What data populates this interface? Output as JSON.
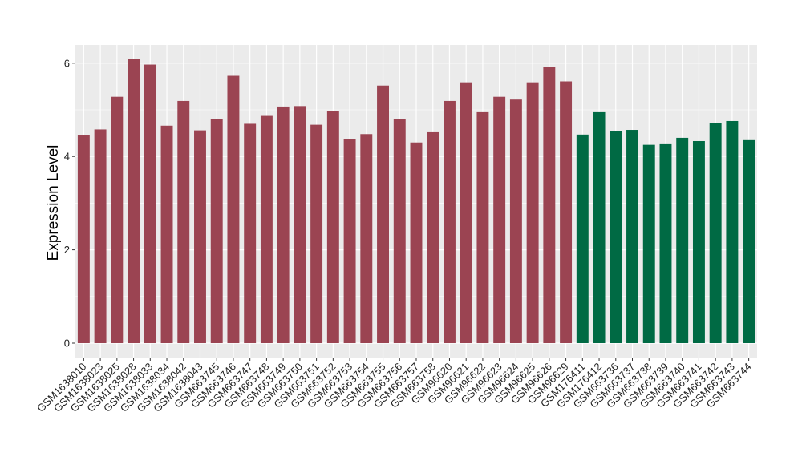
{
  "chart_data": {
    "type": "bar",
    "title": "",
    "xlabel": "",
    "ylabel": "Expression Level",
    "ylim": [
      0,
      6.3
    ],
    "yticks": [
      0,
      2,
      4,
      6
    ],
    "grid": true,
    "legend": "none",
    "colors": {
      "group1": "#9b4452",
      "group2": "#006a44",
      "panel": "#ebebeb",
      "gridline": "#ffffff"
    },
    "categories": [
      "GSM1638010",
      "GSM1638023",
      "GSM1638025",
      "GSM1638028",
      "GSM1638033",
      "GSM1638034",
      "GSM1638042",
      "GSM1638043",
      "GSM663745",
      "GSM663746",
      "GSM663747",
      "GSM663748",
      "GSM663749",
      "GSM663750",
      "GSM663751",
      "GSM663752",
      "GSM663753",
      "GSM663754",
      "GSM663755",
      "GSM663756",
      "GSM663757",
      "GSM663758",
      "GSM96620",
      "GSM96621",
      "GSM96622",
      "GSM96623",
      "GSM96624",
      "GSM96625",
      "GSM96626",
      "GSM96629",
      "GSM176411",
      "GSM176412",
      "GSM663736",
      "GSM663737",
      "GSM663738",
      "GSM663739",
      "GSM663740",
      "GSM663741",
      "GSM663742",
      "GSM663743",
      "GSM663744"
    ],
    "values": [
      4.45,
      4.58,
      5.28,
      6.09,
      5.97,
      4.66,
      5.19,
      4.56,
      4.81,
      5.73,
      4.7,
      4.87,
      5.07,
      5.08,
      4.68,
      4.98,
      4.37,
      4.48,
      5.52,
      4.81,
      4.3,
      4.52,
      5.19,
      5.59,
      4.95,
      5.28,
      5.22,
      5.59,
      5.92,
      5.61,
      4.47,
      4.95,
      4.55,
      4.57,
      4.25,
      4.28,
      4.4,
      4.33,
      4.71,
      4.76,
      4.35
    ],
    "groups": [
      1,
      1,
      1,
      1,
      1,
      1,
      1,
      1,
      1,
      1,
      1,
      1,
      1,
      1,
      1,
      1,
      1,
      1,
      1,
      1,
      1,
      1,
      1,
      1,
      1,
      1,
      1,
      1,
      1,
      1,
      2,
      2,
      2,
      2,
      2,
      2,
      2,
      2,
      2,
      2,
      2
    ]
  }
}
